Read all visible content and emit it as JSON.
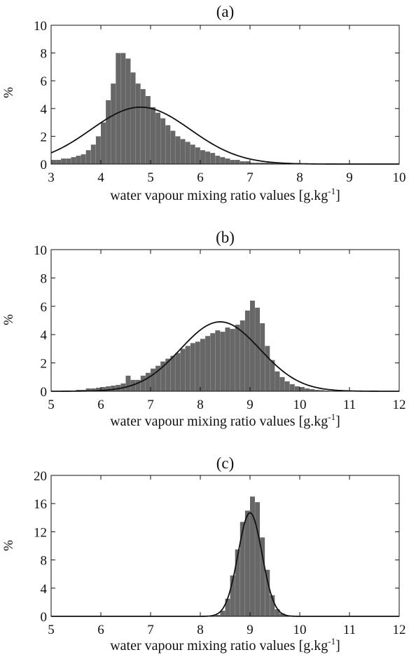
{
  "chart_data": [
    {
      "panel": "(a)",
      "type": "bar",
      "title": "(a)",
      "xlabel": "water vapour mixing ratio values [g.kg",
      "xlabel_superscript": "-1",
      "xlabel_suffix": "]",
      "ylabel": "%",
      "xlim": [
        3,
        10
      ],
      "ylim": [
        0,
        10
      ],
      "xticks": [
        3,
        4,
        5,
        6,
        7,
        8,
        9,
        10
      ],
      "yticks": [
        0,
        2,
        4,
        6,
        8,
        10
      ],
      "grid": false,
      "histogram": {
        "bin_width": 0.1,
        "x": [
          3.0,
          3.1,
          3.2,
          3.3,
          3.4,
          3.5,
          3.6,
          3.7,
          3.8,
          3.9,
          4.0,
          4.1,
          4.2,
          4.3,
          4.4,
          4.5,
          4.6,
          4.7,
          4.8,
          4.9,
          5.0,
          5.1,
          5.2,
          5.3,
          5.4,
          5.5,
          5.6,
          5.7,
          5.8,
          5.9,
          6.0,
          6.1,
          6.2,
          6.3,
          6.4,
          6.5,
          6.6,
          6.7,
          6.8,
          6.9,
          7.0,
          7.1,
          7.2,
          7.3,
          7.4,
          7.5,
          7.6,
          7.7,
          7.8,
          7.9,
          8.0,
          8.1,
          8.2,
          8.3,
          8.4,
          8.5,
          8.6,
          8.7,
          8.8,
          8.9,
          9.0,
          9.1,
          9.2,
          9.3,
          9.4,
          9.5,
          9.6,
          9.7,
          9.8,
          9.9
        ],
        "values": [
          0.3,
          0.3,
          0.4,
          0.4,
          0.5,
          0.6,
          0.7,
          1.0,
          1.4,
          2.0,
          3.0,
          4.6,
          5.8,
          8.0,
          8.0,
          7.6,
          6.6,
          5.8,
          5.4,
          4.9,
          4.1,
          3.7,
          3.3,
          2.8,
          2.4,
          2.0,
          1.8,
          1.6,
          1.4,
          1.2,
          1.0,
          0.9,
          0.8,
          0.6,
          0.5,
          0.4,
          0.3,
          0.3,
          0.2,
          0.2,
          0.1,
          0.1,
          0.1,
          0.1,
          0.1,
          0.1,
          0.1,
          0.1,
          0.05,
          0.05,
          0.05,
          0.05,
          0.05,
          0.05,
          0.05,
          0.05,
          0.05,
          0.05,
          0.05,
          0.05,
          0.05,
          0.05,
          0.05,
          0.05,
          0.05,
          0.05,
          0.05,
          0.05,
          0.05,
          0.05
        ],
        "color": "#676767"
      },
      "fit_curve": {
        "type": "normal",
        "mean": 4.8,
        "stddev": 1.0,
        "peak": 4.1,
        "color": "#111111"
      }
    },
    {
      "panel": "(b)",
      "type": "bar",
      "title": "(b)",
      "xlabel": "water vapour mixing ratio values [g.kg",
      "xlabel_superscript": "-1",
      "xlabel_suffix": "]",
      "ylabel": "%",
      "xlim": [
        5,
        12
      ],
      "ylim": [
        0,
        10
      ],
      "xticks": [
        5,
        6,
        7,
        8,
        9,
        10,
        11,
        12
      ],
      "yticks": [
        0,
        2,
        4,
        6,
        8,
        10
      ],
      "grid": false,
      "histogram": {
        "bin_width": 0.1,
        "x": [
          5.5,
          5.6,
          5.7,
          5.8,
          5.9,
          6.0,
          6.1,
          6.2,
          6.3,
          6.4,
          6.5,
          6.6,
          6.7,
          6.8,
          6.9,
          7.0,
          7.1,
          7.2,
          7.3,
          7.4,
          7.5,
          7.6,
          7.7,
          7.8,
          7.9,
          8.0,
          8.1,
          8.2,
          8.3,
          8.4,
          8.5,
          8.6,
          8.7,
          8.8,
          8.9,
          9.0,
          9.1,
          9.2,
          9.3,
          9.4,
          9.5,
          9.6,
          9.7,
          9.8,
          9.9,
          10.0,
          10.1,
          10.2,
          10.3,
          10.4,
          10.5,
          10.6
        ],
        "values": [
          0.1,
          0.1,
          0.2,
          0.2,
          0.25,
          0.3,
          0.35,
          0.4,
          0.45,
          0.55,
          1.1,
          0.8,
          0.8,
          1.1,
          1.3,
          1.6,
          1.8,
          2.1,
          2.3,
          2.5,
          2.7,
          3.0,
          3.2,
          3.4,
          3.5,
          3.7,
          3.9,
          4.1,
          4.3,
          4.2,
          4.5,
          4.4,
          4.7,
          5.0,
          5.7,
          6.4,
          5.9,
          4.8,
          3.2,
          2.2,
          1.4,
          1.0,
          0.7,
          0.5,
          0.35,
          0.3,
          0.2,
          0.15,
          0.1,
          0.08,
          0.05,
          0.03
        ],
        "color": "#676767"
      },
      "fit_curve": {
        "type": "normal",
        "mean": 8.4,
        "stddev": 0.8,
        "peak": 4.9,
        "color": "#111111"
      }
    },
    {
      "panel": "(c)",
      "type": "bar",
      "title": "(c)",
      "xlabel": "water vapour mixing ratio values [g.kg",
      "xlabel_superscript": "-1",
      "xlabel_suffix": "]",
      "ylabel": "%",
      "xlim": [
        5,
        12
      ],
      "ylim": [
        0,
        20
      ],
      "xticks": [
        5,
        6,
        7,
        8,
        9,
        10,
        11,
        12
      ],
      "yticks": [
        0,
        4,
        8,
        12,
        16,
        20
      ],
      "grid": false,
      "histogram": {
        "bin_width": 0.1,
        "x": [
          8.3,
          8.4,
          8.5,
          8.6,
          8.7,
          8.8,
          8.9,
          9.0,
          9.1,
          9.2,
          9.3,
          9.4,
          9.5,
          9.6,
          9.7,
          9.8
        ],
        "values": [
          0.2,
          0.8,
          2.5,
          5.8,
          9.5,
          13.4,
          15.0,
          17.0,
          16.2,
          11.2,
          6.6,
          3.0,
          1.0,
          0.4,
          0.15,
          0.05
        ],
        "color": "#676767"
      },
      "fit_curve": {
        "type": "normal",
        "mean": 9.0,
        "stddev": 0.24,
        "peak": 14.7,
        "color": "#111111"
      }
    }
  ]
}
